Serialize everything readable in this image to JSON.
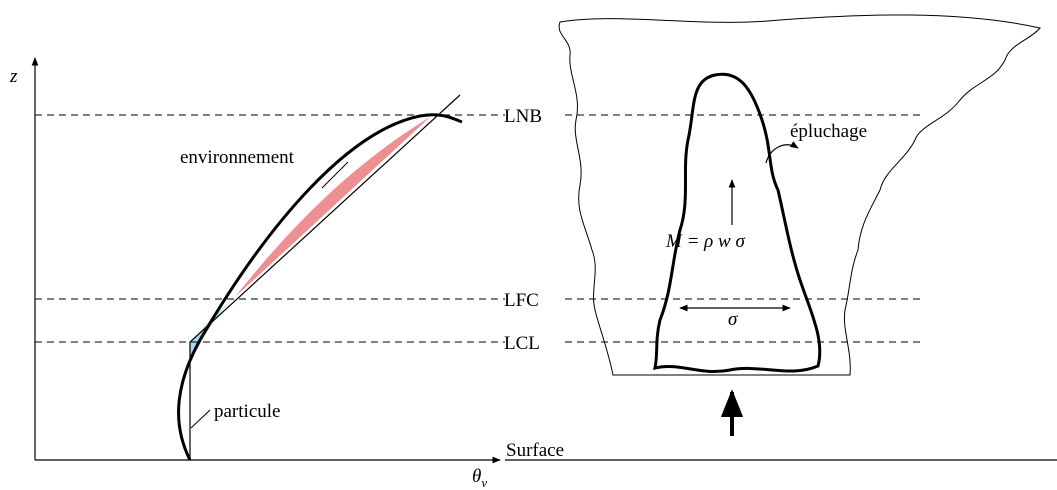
{
  "axes": {
    "y_label": "z",
    "x_label": {
      "symbol": "θ",
      "subscript": "v"
    }
  },
  "levels": {
    "lnb": "LNB",
    "lfc": "LFC",
    "lcl": "LCL",
    "surface": "Surface"
  },
  "curves": {
    "environment": "environnement",
    "parcel": "particule"
  },
  "cloud": {
    "entrainment": "épluchage",
    "mass_flux": "M = ρ w σ",
    "area": "σ"
  }
}
